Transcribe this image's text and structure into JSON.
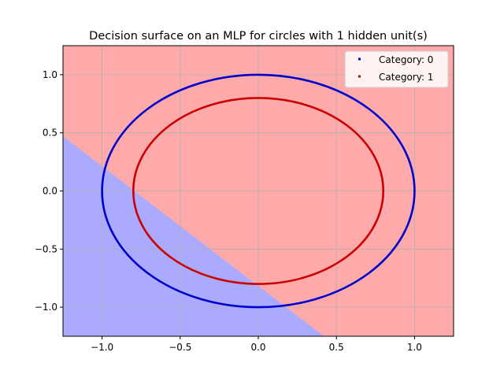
{
  "chart_data": {
    "type": "scatter",
    "title": "Decision surface on an MLP for circles with 1 hidden unit(s)",
    "xlabel": "",
    "ylabel": "",
    "xlim": [
      -1.25,
      1.25
    ],
    "ylim": [
      -1.25,
      1.25
    ],
    "grid": true,
    "legend_position": "top-right",
    "xticks": [
      -1.0,
      -0.5,
      0.0,
      0.5,
      1.0
    ],
    "xtick_labels": [
      "−1.0",
      "−0.5",
      "0.0",
      "0.5",
      "1.0"
    ],
    "yticks": [
      1.0,
      0.5,
      0.0,
      -0.5,
      -1.0
    ],
    "ytick_labels": [
      "1.0",
      "0.5",
      "0.0",
      "−0.5",
      "−1.0"
    ],
    "decision_boundary": {
      "points": [
        [
          -1.25,
          0.47
        ],
        [
          0.42,
          -1.25
        ]
      ],
      "region_below_color": "#aaaaff",
      "region_above_color": "#ffaaaa"
    },
    "series": [
      {
        "name": "Category: 0",
        "shape": "circle",
        "radius": 1.0,
        "color": "#0000cc"
      },
      {
        "name": "Category: 1",
        "shape": "circle",
        "radius": 0.8,
        "color": "#cc0000"
      }
    ]
  }
}
